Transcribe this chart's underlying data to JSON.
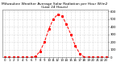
{
  "title": "Milwaukee Weather Average Solar Radiation per Hour W/m2 (Last 24 Hours)",
  "x_hours": [
    0,
    1,
    2,
    3,
    4,
    5,
    6,
    7,
    8,
    9,
    10,
    11,
    12,
    13,
    14,
    15,
    16,
    17,
    18,
    19,
    20,
    21,
    22,
    23
  ],
  "y_values": [
    0,
    0,
    0,
    0,
    0,
    0,
    0,
    15,
    80,
    200,
    370,
    500,
    560,
    540,
    430,
    300,
    150,
    50,
    5,
    0,
    0,
    0,
    0,
    0
  ],
  "line_color": "#ff0000",
  "line_style": "--",
  "line_width": 0.7,
  "marker": "s",
  "marker_size": 1.2,
  "grid_color": "#bbbbbb",
  "grid_style": ":",
  "bg_color": "#ffffff",
  "ylim": [
    0,
    620
  ],
  "xlim": [
    -0.5,
    23.5
  ],
  "ytick_labels": [
    "0",
    "100",
    "200",
    "300",
    "400",
    "500",
    "600"
  ],
  "ytick_values": [
    0,
    100,
    200,
    300,
    400,
    500,
    600
  ],
  "title_fontsize": 3.2,
  "tick_fontsize": 2.8
}
